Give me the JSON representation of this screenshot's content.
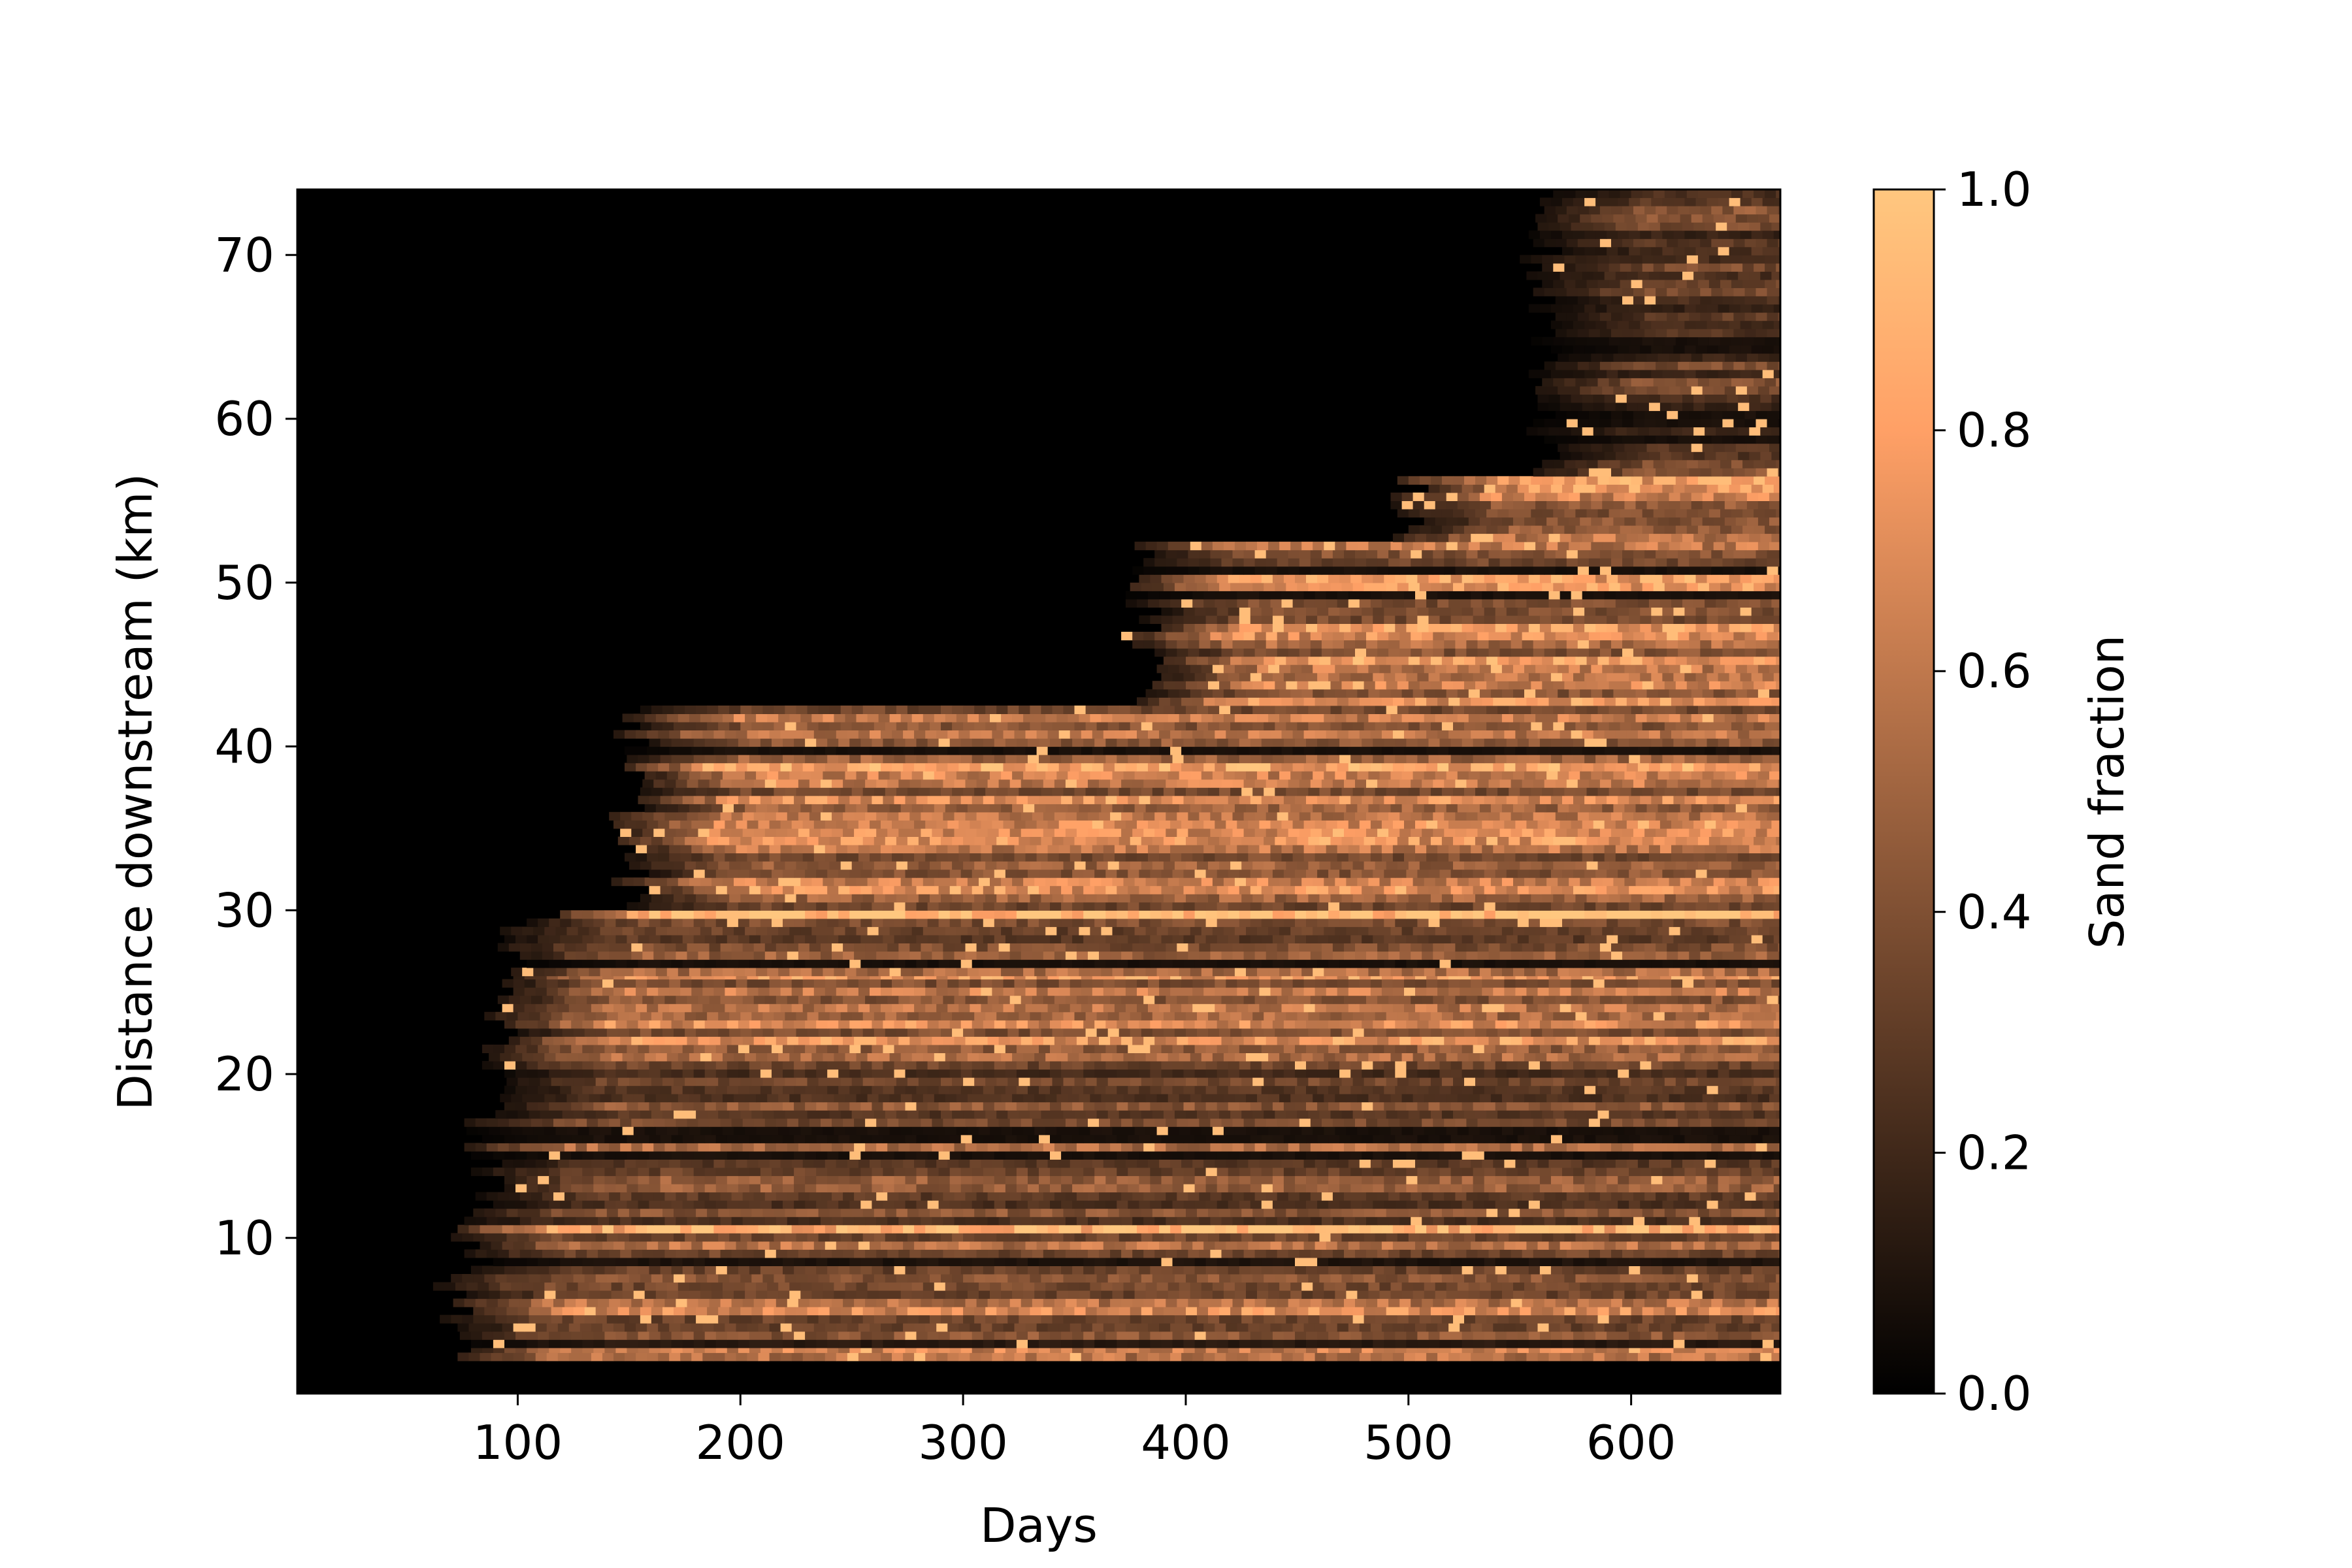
{
  "chart_data": {
    "type": "heatmap",
    "title": "",
    "xlabel": "Days",
    "ylabel": "Distance downstream (km)",
    "xlim": [
      1,
      667
    ],
    "ylim": [
      0.5,
      74
    ],
    "xticks": [
      100,
      200,
      300,
      400,
      500,
      600
    ],
    "yticks": [
      10,
      20,
      30,
      40,
      50,
      60,
      70
    ],
    "grid": false,
    "colorbar": {
      "label": "Sand fraction",
      "range": [
        0.0,
        1.0
      ],
      "ticks": [
        "0.0",
        "0.2",
        "0.4",
        "0.6",
        "0.8",
        "1.0"
      ],
      "colormap": "copper",
      "color_low": "#000000",
      "color_high": "#ffc77f"
    },
    "zones": [
      {
        "y_range": [
          0.5,
          2.5
        ],
        "onset_day": null,
        "level": 0.0
      },
      {
        "y_range": [
          2.5,
          3.3
        ],
        "onset_day": 70,
        "level": 0.5
      },
      {
        "y_range": [
          3.3,
          3.8
        ],
        "onset_day": 80,
        "level": 0.1
      },
      {
        "y_range": [
          3.8,
          8.3
        ],
        "onset_day": 70,
        "level": 0.55
      },
      {
        "y_range": [
          8.3,
          8.8
        ],
        "onset_day": 80,
        "level": 0.12
      },
      {
        "y_range": [
          8.8,
          10.3
        ],
        "onset_day": 75,
        "level": 0.6
      },
      {
        "y_range": [
          10.3,
          10.8
        ],
        "onset_day": 80,
        "level": 0.85
      },
      {
        "y_range": [
          10.8,
          21.8
        ],
        "onset_day": 85,
        "level": 0.4
      },
      {
        "y_range": [
          21.8,
          26.0
        ],
        "onset_day": 95,
        "level": 0.55
      },
      {
        "y_range": [
          26.0,
          29.5
        ],
        "onset_day": 100,
        "level": 0.5
      },
      {
        "y_range": [
          29.5,
          30.0
        ],
        "onset_day": 110,
        "level": 0.85
      },
      {
        "y_range": [
          30.0,
          42.5
        ],
        "onset_day": 150,
        "level": 0.6
      },
      {
        "y_range": [
          42.5,
          52.5
        ],
        "onset_day": 380,
        "level": 0.55
      },
      {
        "y_range": [
          52.5,
          56.5
        ],
        "onset_day": 500,
        "level": 0.55
      },
      {
        "y_range": [
          56.5,
          74.0
        ],
        "onset_day": 560,
        "level": 0.3
      }
    ]
  }
}
